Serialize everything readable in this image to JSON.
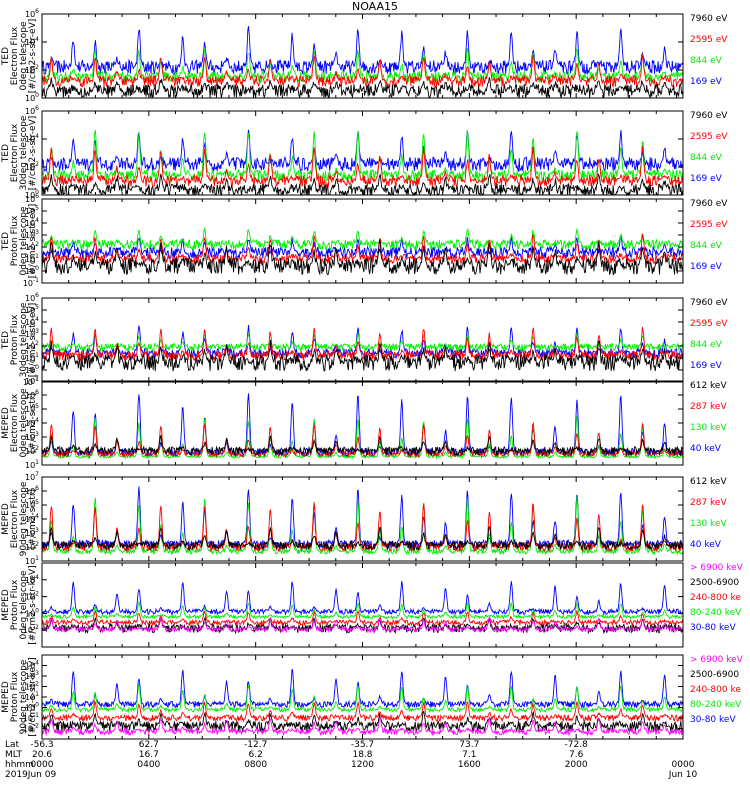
{
  "title": "NOAA15",
  "colors": {
    "black": "#000000",
    "red": "#ff0000",
    "green": "#00ee00",
    "blue": "#0000ff",
    "magenta": "#ff00ff"
  },
  "x_axis": {
    "row_labels": [
      "Lat",
      "MLT",
      "hhmm",
      "2019"
    ],
    "ticks": [
      {
        "hours": 0,
        "lat": "-56.3",
        "mlt": "20.6",
        "hhmm": "0000",
        "date": "Jun 09"
      },
      {
        "hours": 4,
        "lat": "62.7",
        "mlt": "16.7",
        "hhmm": "0400",
        "date": ""
      },
      {
        "hours": 8,
        "lat": "-12.7",
        "mlt": "6.2",
        "hhmm": "0800",
        "date": ""
      },
      {
        "hours": 12,
        "lat": "-35.7",
        "mlt": "18.8",
        "hhmm": "1200",
        "date": ""
      },
      {
        "hours": 16,
        "lat": "73.7",
        "mlt": "7.1",
        "hhmm": "1600",
        "date": ""
      },
      {
        "hours": 20,
        "lat": "-72.8",
        "mlt": "7.6",
        "hhmm": "2000",
        "date": ""
      },
      {
        "hours": 24,
        "lat": "",
        "mlt": "",
        "hhmm": "0000",
        "date": "Jun 10"
      }
    ]
  },
  "chart_data": [
    {
      "type": "line",
      "ylabel": [
        "TED",
        "Electron Flux",
        "0deg telescope",
        "[#/cm2-s-str-eV]"
      ],
      "scale": "log",
      "ylim_exp": [
        0,
        6
      ],
      "tick_exps": [
        0,
        2,
        4,
        6
      ],
      "x_range_hours": [
        0,
        24
      ],
      "series": [
        {
          "name": "7960 eV",
          "color": "#000000",
          "baseline_exp": 0.5,
          "peak_exp": 1.3,
          "jitter": 0.5
        },
        {
          "name": "2595 eV",
          "color": "#ff0000",
          "baseline_exp": 1.2,
          "peak_exp": 3.0,
          "jitter": 0.4
        },
        {
          "name": "844 eV",
          "color": "#00ee00",
          "baseline_exp": 1.5,
          "peak_exp": 3.6,
          "jitter": 0.4
        },
        {
          "name": "169 eV",
          "color": "#0000ff",
          "baseline_exp": 2.2,
          "peak_exp": 5.0,
          "jitter": 0.5
        }
      ]
    },
    {
      "type": "line",
      "ylabel": [
        "TED",
        "Electron Flux",
        "30deg telescope",
        "[#/cm2-s-str-eV]"
      ],
      "scale": "log",
      "ylim_exp": [
        0,
        6
      ],
      "tick_exps": [
        0,
        2,
        4,
        6
      ],
      "x_range_hours": [
        0,
        24
      ],
      "series": [
        {
          "name": "7960 eV",
          "color": "#000000",
          "baseline_exp": 0.3,
          "peak_exp": 1.4,
          "jitter": 0.5
        },
        {
          "name": "2595 eV",
          "color": "#ff0000",
          "baseline_exp": 1.0,
          "peak_exp": 3.4,
          "jitter": 0.4
        },
        {
          "name": "844 eV",
          "color": "#00ee00",
          "baseline_exp": 1.4,
          "peak_exp": 4.8,
          "jitter": 0.4
        },
        {
          "name": "169 eV",
          "color": "#0000ff",
          "baseline_exp": 2.2,
          "peak_exp": 4.6,
          "jitter": 0.5
        }
      ]
    },
    {
      "type": "line",
      "ylabel": [
        "TED",
        "Proton Flux",
        "0deg telescope",
        "[#/cm2-s-str-eV]"
      ],
      "scale": "log",
      "ylim_exp": [
        -1,
        6
      ],
      "tick_exps": [
        -1,
        0,
        1,
        2,
        3,
        4,
        5,
        6
      ],
      "x_range_hours": [
        0,
        24
      ],
      "series": [
        {
          "name": "7960 eV",
          "color": "#000000",
          "baseline_exp": 0.4,
          "peak_exp": 2.4,
          "jitter": 0.7
        },
        {
          "name": "2595 eV",
          "color": "#ff0000",
          "baseline_exp": 1.0,
          "peak_exp": 3.0,
          "jitter": 0.4
        },
        {
          "name": "844 eV",
          "color": "#00ee00",
          "baseline_exp": 2.2,
          "peak_exp": 3.5,
          "jitter": 0.4
        },
        {
          "name": "169 eV",
          "color": "#0000ff",
          "baseline_exp": 1.5,
          "peak_exp": 2.8,
          "jitter": 0.5
        }
      ]
    },
    {
      "type": "line",
      "ylabel": [
        "TED",
        "Proton Flux",
        "30deg telescope",
        "[#/cm2-s-str-eV]"
      ],
      "scale": "log",
      "ylim_exp": [
        -1,
        6
      ],
      "tick_exps": [
        -1,
        0,
        1,
        2,
        3,
        4,
        5,
        6
      ],
      "x_range_hours": [
        0,
        24
      ],
      "series": [
        {
          "name": "7960 eV",
          "color": "#000000",
          "baseline_exp": 0.6,
          "peak_exp": 2.2,
          "jitter": 0.7
        },
        {
          "name": "2595 eV",
          "color": "#ff0000",
          "baseline_exp": 1.2,
          "peak_exp": 3.5,
          "jitter": 0.4
        },
        {
          "name": "844 eV",
          "color": "#00ee00",
          "baseline_exp": 1.9,
          "peak_exp": 3.0,
          "jitter": 0.3
        },
        {
          "name": "169 eV",
          "color": "#0000ff",
          "baseline_exp": 1.4,
          "peak_exp": 3.6,
          "jitter": 0.4
        }
      ]
    },
    {
      "type": "line",
      "ylabel": [
        "MEPED",
        "Electron Flux",
        "0deg telescope",
        "[#/cm2-s-str]"
      ],
      "scale": "log",
      "ylim_exp": [
        1,
        7
      ],
      "tick_exps": [
        1,
        2,
        3,
        4,
        5,
        6,
        7
      ],
      "x_range_hours": [
        0,
        24
      ],
      "series": [
        {
          "name": "612 keV",
          "color": "#000000",
          "baseline_exp": 2.0,
          "peak_exp": 3.0,
          "jitter": 0.3
        },
        {
          "name": "287 keV",
          "color": "#ff0000",
          "baseline_exp": 1.8,
          "peak_exp": 4.0,
          "jitter": 0.2
        },
        {
          "name": "130 keV",
          "color": "#00ee00",
          "baseline_exp": 1.6,
          "peak_exp": 4.5,
          "jitter": 0.1
        },
        {
          "name": "40 keV",
          "color": "#0000ff",
          "baseline_exp": 1.9,
          "peak_exp": 6.2,
          "jitter": 0.3
        }
      ]
    },
    {
      "type": "line",
      "ylabel": [
        "MEPED",
        "Electron Flux",
        "90deg telescope",
        "[#/cm2-s-str]"
      ],
      "scale": "log",
      "ylim_exp": [
        1,
        7
      ],
      "tick_exps": [
        1,
        2,
        3,
        4,
        5,
        6,
        7
      ],
      "x_range_hours": [
        0,
        24
      ],
      "series": [
        {
          "name": "612 keV",
          "color": "#000000",
          "baseline_exp": 2.1,
          "peak_exp": 3.4,
          "jitter": 0.3
        },
        {
          "name": "287 keV",
          "color": "#ff0000",
          "baseline_exp": 2.0,
          "peak_exp": 5.2,
          "jitter": 0.3
        },
        {
          "name": "130 keV",
          "color": "#00ee00",
          "baseline_exp": 1.7,
          "peak_exp": 5.6,
          "jitter": 0.2
        },
        {
          "name": "40 keV",
          "color": "#0000ff",
          "baseline_exp": 2.2,
          "peak_exp": 6.3,
          "jitter": 0.3
        }
      ]
    },
    {
      "type": "line",
      "ylabel": [
        "MEPED",
        "Proton Flux",
        "0deg telescope",
        "[#/cm2-s-str-keV]"
      ],
      "scale": "log",
      "ylim_exp": [
        -4,
        6
      ],
      "tick_exps": [
        -2,
        0,
        2,
        4
      ],
      "x_range_hours": [
        0,
        24
      ],
      "series": [
        {
          "name": "> 6900 keV",
          "color": "#ff00ff",
          "baseline_exp": -1.9,
          "peak_exp": -0.5,
          "jitter": 0.3
        },
        {
          "name": "2500-6900",
          "color": "#000000",
          "baseline_exp": -1.8,
          "peak_exp": -0.6,
          "jitter": 0.5
        },
        {
          "name": "240-800 ke",
          "color": "#ff0000",
          "baseline_exp": -1.1,
          "peak_exp": 0.3,
          "jitter": 0.3
        },
        {
          "name": "80-240 keV",
          "color": "#00ee00",
          "baseline_exp": -0.4,
          "peak_exp": 1.3,
          "jitter": 0.2
        },
        {
          "name": "30-80 keV",
          "color": "#0000ff",
          "baseline_exp": 0.2,
          "peak_exp": 3.8,
          "jitter": 0.3
        }
      ]
    },
    {
      "type": "line",
      "ylabel": [
        "MEPED",
        "Proton Flux",
        "90deg telescope",
        "[#/cm2-s-str-keV]"
      ],
      "scale": "log",
      "ylim_exp": [
        -3,
        5
      ],
      "tick_exps": [
        -2,
        -1,
        0,
        1,
        2,
        3,
        4
      ],
      "x_range_hours": [
        0,
        24
      ],
      "series": [
        {
          "name": "> 6900 keV",
          "color": "#ff00ff",
          "baseline_exp": -2.3,
          "peak_exp": -1.0,
          "jitter": 0.3
        },
        {
          "name": "2500-6900",
          "color": "#000000",
          "baseline_exp": -1.8,
          "peak_exp": -0.5,
          "jitter": 0.5
        },
        {
          "name": "240-800 ke",
          "color": "#ff0000",
          "baseline_exp": -1.0,
          "peak_exp": 0.6,
          "jitter": 0.3
        },
        {
          "name": "80-240 keV",
          "color": "#00ee00",
          "baseline_exp": -0.2,
          "peak_exp": 2.2,
          "jitter": 0.2
        },
        {
          "name": "30-80 keV",
          "color": "#0000ff",
          "baseline_exp": 0.3,
          "peak_exp": 3.6,
          "jitter": 0.3
        }
      ]
    }
  ]
}
